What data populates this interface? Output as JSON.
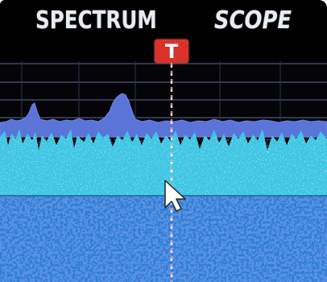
{
  "title": {
    "word1": "SPECTRUM",
    "word2": "SCOPE"
  },
  "tune_marker": {
    "label": "T"
  },
  "colors": {
    "background": "#000000",
    "grid_line": "#4a4f6a",
    "spectrum_fill": "#5a78d6",
    "spectrum_band": "#46c8e6",
    "waterfall": "#2f7fd8",
    "marker": "#d8322a"
  },
  "icons": {
    "pointer": "mouse-pointer-icon"
  }
}
